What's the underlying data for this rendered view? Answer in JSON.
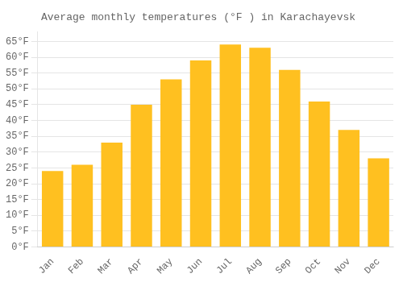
{
  "chart_data": {
    "type": "bar",
    "title": "Average monthly temperatures (°F ) in Karachayevsk",
    "categories": [
      "Jan",
      "Feb",
      "Mar",
      "Apr",
      "May",
      "Jun",
      "Jul",
      "Aug",
      "Sep",
      "Oct",
      "Nov",
      "Dec"
    ],
    "values": [
      24,
      26,
      33,
      45,
      53,
      59,
      64,
      63,
      56,
      46,
      37,
      28
    ],
    "color": "#FFC020",
    "ylim": [
      0,
      68
    ],
    "yticks": [
      {
        "value": 0,
        "label": "0°F"
      },
      {
        "value": 5,
        "label": "5°F"
      },
      {
        "value": 10,
        "label": "10°F"
      },
      {
        "value": 15,
        "label": "15°F"
      },
      {
        "value": 20,
        "label": "20°F"
      },
      {
        "value": 25,
        "label": "25°F"
      },
      {
        "value": 30,
        "label": "30°F"
      },
      {
        "value": 35,
        "label": "35°F"
      },
      {
        "value": 40,
        "label": "40°F"
      },
      {
        "value": 45,
        "label": "45°F"
      },
      {
        "value": 50,
        "label": "50°F"
      },
      {
        "value": 55,
        "label": "55°F"
      },
      {
        "value": 60,
        "label": "60°F"
      },
      {
        "value": 65,
        "label": "65°F"
      }
    ],
    "grid": true
  }
}
